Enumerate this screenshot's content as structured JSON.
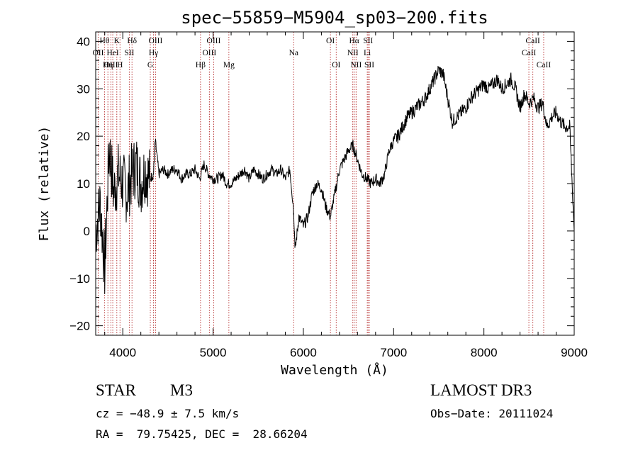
{
  "chart_data": {
    "type": "line",
    "title": "spec−55859−M5904_sp03−200.fits",
    "xlabel": "Wavelength (Å)",
    "ylabel": "Flux (relative)",
    "xlim": [
      3700,
      9000
    ],
    "ylim": [
      -22,
      42
    ],
    "xticks": [
      4000,
      5000,
      6000,
      7000,
      8000,
      9000
    ],
    "yticks": [
      -20,
      -10,
      0,
      10,
      20,
      30,
      40
    ],
    "xtick_labels": [
      "4000",
      "5000",
      "6000",
      "7000",
      "8000",
      "9000"
    ],
    "ytick_labels": [
      "−20",
      "−10",
      "0",
      "10",
      "20",
      "30",
      "40"
    ],
    "series": [
      {
        "name": "spectrum",
        "x": [
          3700,
          3750,
          3800,
          3850,
          3900,
          3950,
          4000,
          4050,
          4100,
          4150,
          4200,
          4250,
          4300,
          4340,
          4360,
          4400,
          4450,
          4500,
          4550,
          4600,
          4650,
          4700,
          4750,
          4800,
          4850,
          4900,
          4950,
          5000,
          5050,
          5100,
          5150,
          5200,
          5250,
          5300,
          5350,
          5400,
          5450,
          5500,
          5550,
          5600,
          5650,
          5700,
          5750,
          5800,
          5850,
          5890,
          5910,
          5950,
          6000,
          6050,
          6100,
          6150,
          6200,
          6250,
          6300,
          6350,
          6400,
          6450,
          6500,
          6550,
          6600,
          6650,
          6700,
          6750,
          6800,
          6850,
          6900,
          6950,
          7000,
          7050,
          7100,
          7150,
          7200,
          7250,
          7300,
          7350,
          7400,
          7450,
          7500,
          7550,
          7600,
          7650,
          7700,
          7750,
          7800,
          7850,
          7900,
          7950,
          8000,
          8050,
          8100,
          8150,
          8200,
          8250,
          8300,
          8350,
          8400,
          8450,
          8500,
          8550,
          8600,
          8650,
          8700,
          8750,
          8800,
          8850,
          8900,
          8950,
          9000
        ],
        "y": [
          0,
          6,
          -8,
          18,
          8,
          12,
          10,
          8,
          12,
          14,
          10,
          13,
          11,
          12,
          19,
          12,
          13,
          12,
          13,
          13,
          11,
          12,
          12,
          13,
          11,
          14,
          12,
          11,
          11,
          12,
          10,
          10,
          11,
          12,
          13,
          11,
          13,
          12,
          11,
          12,
          13,
          12,
          13,
          11,
          13,
          5,
          -4,
          3,
          1,
          3,
          8,
          10,
          9,
          5,
          3,
          8,
          13,
          15,
          17,
          18,
          15,
          12,
          11,
          10,
          11,
          10,
          12,
          17,
          19,
          20,
          22,
          24,
          25,
          26,
          27,
          28,
          30,
          32,
          34,
          33,
          28,
          23,
          24,
          25,
          26,
          28,
          29,
          30,
          31,
          30,
          31,
          32,
          30,
          31,
          32,
          30,
          26,
          29,
          27,
          28,
          26,
          27,
          22,
          24,
          25,
          23,
          22,
          22,
          0
        ],
        "color": "#000000"
      }
    ],
    "spectral_lines": [
      {
        "name": "Hθ",
        "x": 3797,
        "row": 1
      },
      {
        "name": "OII",
        "x": 3727,
        "row": 2
      },
      {
        "name": "OIII",
        "x": 3869,
        "row": 3
      },
      {
        "name": "K",
        "x": 3934,
        "row": 1
      },
      {
        "name": "HeI",
        "x": 3889,
        "row": 2
      },
      {
        "name": "Hη",
        "x": 3835,
        "row": 3
      },
      {
        "name": "Hδ",
        "x": 4102,
        "row": 1
      },
      {
        "name": "SII",
        "x": 4072,
        "row": 2
      },
      {
        "name": "H",
        "x": 3969,
        "row": 3
      },
      {
        "name": "OIII",
        "x": 4363,
        "row": 1
      },
      {
        "name": "Hγ",
        "x": 4340,
        "row": 2
      },
      {
        "name": "G",
        "x": 4305,
        "row": 3
      },
      {
        "name": "OIII",
        "x": 5007,
        "row": 1
      },
      {
        "name": "OIII",
        "x": 4959,
        "row": 2
      },
      {
        "name": "Hβ",
        "x": 4861,
        "row": 3
      },
      {
        "name": "Mg",
        "x": 5175,
        "row": 3
      },
      {
        "name": "Na",
        "x": 5893,
        "row": 2
      },
      {
        "name": "OI",
        "x": 6300,
        "row": 1
      },
      {
        "name": "OI",
        "x": 6364,
        "row": 3
      },
      {
        "name": "Hα",
        "x": 6563,
        "row": 1
      },
      {
        "name": "SII",
        "x": 6717,
        "row": 1
      },
      {
        "name": "NII",
        "x": 6548,
        "row": 2
      },
      {
        "name": "Li",
        "x": 6708,
        "row": 2
      },
      {
        "name": "NII",
        "x": 6584,
        "row": 3
      },
      {
        "name": "SII",
        "x": 6731,
        "row": 3
      },
      {
        "name": "CaII",
        "x": 8542,
        "row": 1
      },
      {
        "name": "CaII",
        "x": 8498,
        "row": 2
      },
      {
        "name": "CaII",
        "x": 8662,
        "row": 3
      }
    ]
  },
  "info": {
    "object_class": "STAR",
    "subclass": "M3",
    "survey": "LAMOST DR3",
    "cz": "cz = −48.9 ± 7.5 km/s",
    "obs_date": "Obs−Date: 20111024",
    "coords": "RA =  79.75425, DEC =  28.66204"
  }
}
